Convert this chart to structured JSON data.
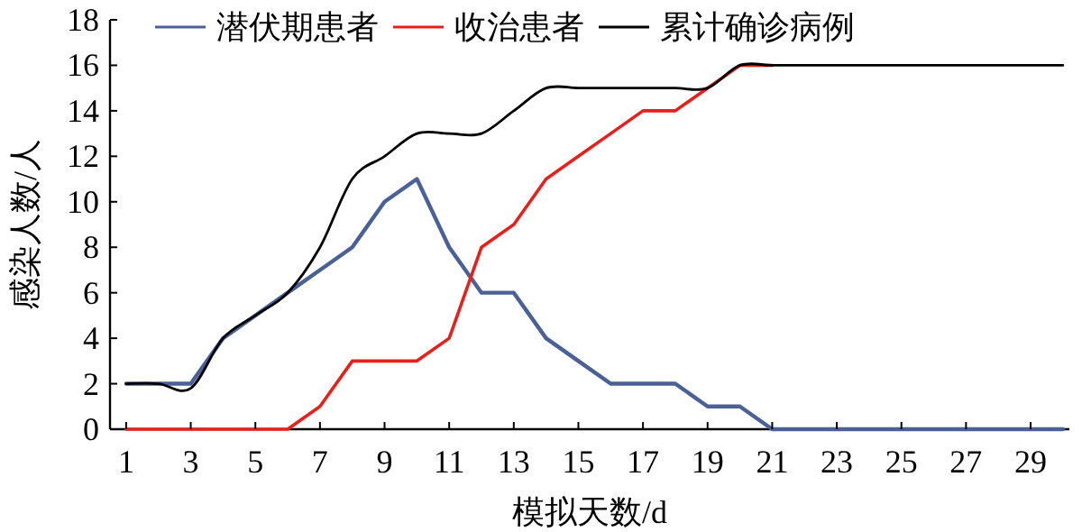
{
  "chart_data": {
    "type": "line",
    "xlabel": "模拟天数/d",
    "ylabel": "感染人数/人",
    "xlim": [
      0.5,
      30.2
    ],
    "ylim": [
      0,
      18
    ],
    "xticks": [
      1,
      3,
      5,
      7,
      9,
      11,
      13,
      15,
      17,
      19,
      21,
      23,
      25,
      27,
      29
    ],
    "yticks": [
      0,
      2,
      4,
      6,
      8,
      10,
      12,
      14,
      16,
      18
    ],
    "grid": false,
    "legend": "top",
    "marker": "none",
    "line_style": "solid",
    "series": [
      {
        "name": "潜伏期患者",
        "color": "#4a6197",
        "x": [
          1,
          2,
          3,
          4,
          5,
          6,
          7,
          8,
          9,
          10,
          11,
          12,
          13,
          14,
          15,
          16,
          17,
          18,
          19,
          20,
          21,
          22,
          23,
          24,
          25,
          26,
          27,
          28,
          29,
          30
        ],
        "values": [
          2,
          2,
          2,
          4,
          5,
          6,
          7,
          8,
          10,
          11,
          8,
          6,
          6,
          4,
          3,
          2,
          2,
          2,
          1,
          1,
          0,
          0,
          0,
          0,
          0,
          0,
          0,
          0,
          0,
          0
        ]
      },
      {
        "name": "收治患者",
        "color": "#e8201c",
        "x": [
          1,
          2,
          3,
          4,
          5,
          6,
          7,
          8,
          9,
          10,
          11,
          12,
          13,
          14,
          15,
          16,
          17,
          18,
          19,
          20,
          21
        ],
        "values": [
          0,
          0,
          0,
          0,
          0,
          0,
          1,
          3,
          3,
          3,
          4,
          8,
          9,
          11,
          12,
          13,
          14,
          14,
          15,
          16,
          16
        ]
      },
      {
        "name": "累计确诊病例",
        "color": "#000000",
        "x": [
          1,
          2,
          3,
          4,
          5,
          6,
          7,
          8,
          9,
          10,
          11,
          12,
          13,
          14,
          15,
          16,
          17,
          18,
          19,
          20,
          21,
          22,
          23,
          24,
          25,
          26,
          27,
          28,
          29,
          30
        ],
        "values": [
          2,
          2,
          1.8,
          4,
          5,
          6,
          8,
          11,
          12,
          13,
          13,
          13,
          14,
          15,
          15,
          15,
          15,
          15,
          15,
          16,
          16,
          16,
          16,
          16,
          16,
          16,
          16,
          16,
          16,
          16
        ]
      }
    ]
  }
}
